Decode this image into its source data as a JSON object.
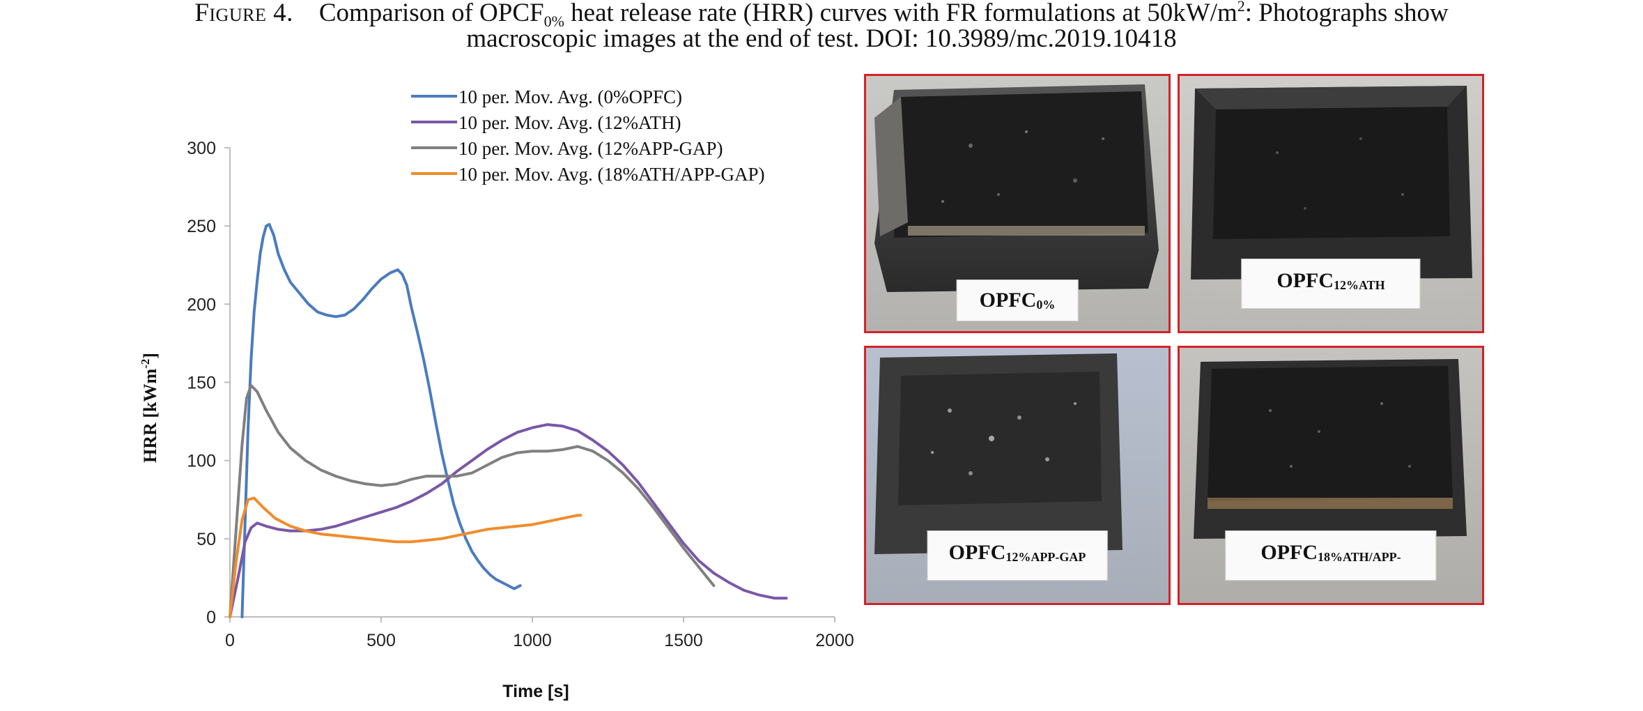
{
  "caption": {
    "prefix": "Figure 4.",
    "line1_a": "Comparison of OPCF",
    "line1_sub": "0%",
    "line1_b": " heat release rate (HRR) curves with FR formulations at 50kW/m",
    "line1_sup": "2",
    "line1_c": ": Photographs show",
    "line2": "macroscopic images at the end of test. DOI: 10.3989/mc.2019.10418"
  },
  "chart_data": {
    "type": "line",
    "xlabel": "Time [s]",
    "ylabel": "HRR [kWm",
    "ylabel_sup": "-2",
    "ylabel_end": "]",
    "xlim": [
      0,
      2000
    ],
    "ylim": [
      0,
      300
    ],
    "xticks": [
      "0",
      "500",
      "1000",
      "1500",
      "2000"
    ],
    "yticks": [
      "0",
      "50",
      "100",
      "150",
      "200",
      "250",
      "300"
    ],
    "grid": false,
    "legend_position": "top",
    "series": [
      {
        "name": "10 per. Mov. Avg. (0%OPFC)",
        "color": "#4a7bbf",
        "points": [
          [
            40,
            0
          ],
          [
            50,
            60
          ],
          [
            60,
            120
          ],
          [
            70,
            165
          ],
          [
            80,
            195
          ],
          [
            90,
            215
          ],
          [
            100,
            232
          ],
          [
            110,
            243
          ],
          [
            120,
            250
          ],
          [
            130,
            251
          ],
          [
            145,
            244
          ],
          [
            160,
            232
          ],
          [
            180,
            222
          ],
          [
            200,
            214
          ],
          [
            230,
            207
          ],
          [
            260,
            200
          ],
          [
            290,
            195
          ],
          [
            320,
            193
          ],
          [
            350,
            192
          ],
          [
            380,
            193
          ],
          [
            410,
            197
          ],
          [
            440,
            203
          ],
          [
            470,
            210
          ],
          [
            500,
            216
          ],
          [
            530,
            220
          ],
          [
            555,
            222
          ],
          [
            570,
            219
          ],
          [
            585,
            212
          ],
          [
            600,
            198
          ],
          [
            620,
            182
          ],
          [
            640,
            165
          ],
          [
            660,
            146
          ],
          [
            680,
            125
          ],
          [
            700,
            105
          ],
          [
            720,
            88
          ],
          [
            740,
            72
          ],
          [
            760,
            60
          ],
          [
            780,
            50
          ],
          [
            800,
            42
          ],
          [
            820,
            36
          ],
          [
            840,
            31
          ],
          [
            860,
            27
          ],
          [
            880,
            24
          ],
          [
            900,
            22
          ],
          [
            920,
            20
          ],
          [
            940,
            18
          ],
          [
            960,
            20
          ]
        ]
      },
      {
        "name": "10 per. Mov. Avg. (12%ATH)",
        "color": "#7a57a8",
        "points": [
          [
            0,
            0
          ],
          [
            30,
            28
          ],
          [
            50,
            48
          ],
          [
            70,
            57
          ],
          [
            90,
            60
          ],
          [
            120,
            58
          ],
          [
            160,
            56
          ],
          [
            200,
            55
          ],
          [
            250,
            55
          ],
          [
            300,
            56
          ],
          [
            350,
            58
          ],
          [
            400,
            61
          ],
          [
            450,
            64
          ],
          [
            500,
            67
          ],
          [
            550,
            70
          ],
          [
            600,
            74
          ],
          [
            650,
            79
          ],
          [
            700,
            85
          ],
          [
            750,
            93
          ],
          [
            800,
            100
          ],
          [
            850,
            107
          ],
          [
            900,
            113
          ],
          [
            950,
            118
          ],
          [
            1000,
            121
          ],
          [
            1050,
            123
          ],
          [
            1100,
            122
          ],
          [
            1150,
            119
          ],
          [
            1200,
            113
          ],
          [
            1250,
            106
          ],
          [
            1300,
            97
          ],
          [
            1350,
            86
          ],
          [
            1400,
            73
          ],
          [
            1450,
            60
          ],
          [
            1500,
            47
          ],
          [
            1550,
            36
          ],
          [
            1600,
            28
          ],
          [
            1650,
            22
          ],
          [
            1700,
            17
          ],
          [
            1750,
            14
          ],
          [
            1800,
            12
          ],
          [
            1840,
            12
          ]
        ]
      },
      {
        "name": "10 per. Mov. Avg. (12%APP-GAP)",
        "color": "#808080",
        "points": [
          [
            0,
            0
          ],
          [
            20,
            55
          ],
          [
            40,
            110
          ],
          [
            55,
            140
          ],
          [
            70,
            148
          ],
          [
            90,
            144
          ],
          [
            120,
            132
          ],
          [
            160,
            118
          ],
          [
            200,
            108
          ],
          [
            250,
            100
          ],
          [
            300,
            94
          ],
          [
            350,
            90
          ],
          [
            400,
            87
          ],
          [
            450,
            85
          ],
          [
            500,
            84
          ],
          [
            550,
            85
          ],
          [
            600,
            88
          ],
          [
            650,
            90
          ],
          [
            700,
            90
          ],
          [
            750,
            90
          ],
          [
            800,
            92
          ],
          [
            850,
            97
          ],
          [
            900,
            102
          ],
          [
            950,
            105
          ],
          [
            1000,
            106
          ],
          [
            1050,
            106
          ],
          [
            1100,
            107
          ],
          [
            1150,
            109
          ],
          [
            1200,
            106
          ],
          [
            1250,
            100
          ],
          [
            1300,
            92
          ],
          [
            1350,
            82
          ],
          [
            1400,
            70
          ],
          [
            1450,
            57
          ],
          [
            1500,
            44
          ],
          [
            1550,
            32
          ],
          [
            1600,
            20
          ]
        ]
      },
      {
        "name": "10 per. Mov. Avg. (18%ATH/APP-GAP)",
        "color": "#f08c2c",
        "points": [
          [
            0,
            0
          ],
          [
            20,
            35
          ],
          [
            40,
            62
          ],
          [
            60,
            75
          ],
          [
            80,
            76
          ],
          [
            110,
            70
          ],
          [
            150,
            63
          ],
          [
            200,
            58
          ],
          [
            250,
            55
          ],
          [
            300,
            53
          ],
          [
            350,
            52
          ],
          [
            400,
            51
          ],
          [
            450,
            50
          ],
          [
            500,
            49
          ],
          [
            550,
            48
          ],
          [
            600,
            48
          ],
          [
            650,
            49
          ],
          [
            700,
            50
          ],
          [
            750,
            52
          ],
          [
            800,
            54
          ],
          [
            850,
            56
          ],
          [
            900,
            57
          ],
          [
            950,
            58
          ],
          [
            1000,
            59
          ],
          [
            1050,
            61
          ],
          [
            1100,
            63
          ],
          [
            1150,
            65
          ],
          [
            1160,
            65
          ]
        ]
      }
    ]
  },
  "photos": [
    {
      "label": "OPFC",
      "label_sub": "0%"
    },
    {
      "label": "OPFC",
      "label_sub": "12%ATH"
    },
    {
      "label": "OPFC",
      "label_sub": "12%APP-GAP"
    },
    {
      "label": "OPFC",
      "label_sub": "18%ATH/APP-"
    }
  ]
}
